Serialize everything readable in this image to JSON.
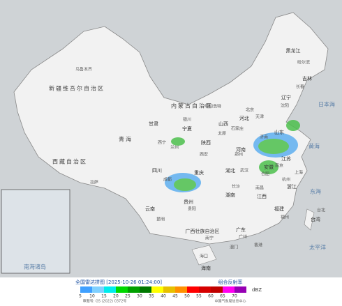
{
  "map": {
    "regions": [
      "新疆维吾尔自治区",
      "西藏自治区",
      "青海",
      "内蒙古自治区",
      "黑龙江",
      "吉林",
      "辽宁",
      "河北",
      "山西",
      "陕西",
      "宁夏",
      "甘肃",
      "四川",
      "重庆",
      "贵州",
      "云南",
      "广西壮族自治区",
      "广东",
      "湖南",
      "湖北",
      "河南",
      "山东",
      "江苏",
      "安徽",
      "浙江",
      "江西",
      "福建",
      "台湾",
      "海南"
    ],
    "cities": [
      "乌鲁木齐",
      "拉萨",
      "西宁",
      "兰州",
      "银川",
      "呼和浩特",
      "哈尔滨",
      "长春",
      "沈阳",
      "北京",
      "天津",
      "石家庄",
      "太原",
      "西安",
      "成都",
      "贵阳",
      "昆明",
      "南宁",
      "广州",
      "长沙",
      "武汉",
      "郑州",
      "济南",
      "南京",
      "合肥",
      "上海",
      "杭州",
      "南昌",
      "福州",
      "台北",
      "海口",
      "香港",
      "澳门"
    ],
    "seas": [
      "日本海",
      "黄海",
      "东海",
      "太平洋",
      "南海诸岛"
    ]
  },
  "legend": {
    "title": "全国雷达拼图 [2025-10-26 01:24:00]",
    "product": "组合反射率",
    "unit": "dBZ",
    "ticks": [
      5,
      10,
      15,
      20,
      25,
      30,
      35,
      40,
      45,
      50,
      55,
      60,
      65,
      70
    ],
    "colors": [
      "#3fa0ff",
      "#7fd0ff",
      "#00ecec",
      "#00d800",
      "#01a000",
      "#007800",
      "#ffff00",
      "#e7c000",
      "#ff9000",
      "#ff0000",
      "#d60000",
      "#c00000",
      "#ff00f0",
      "#9600b4"
    ]
  },
  "footer": {
    "approval": "审图号: GS (2022) 0372号",
    "source": "中国气象局信息中心"
  }
}
